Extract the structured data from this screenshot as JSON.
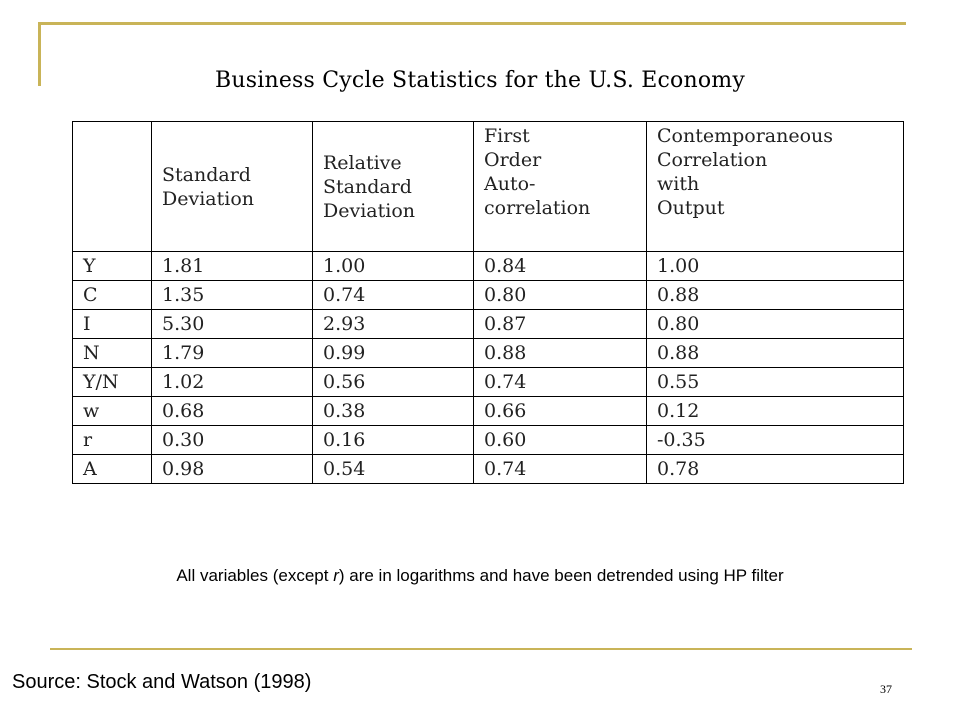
{
  "slide": {
    "title": "Business Cycle Statistics for the U.S. Economy",
    "note_prefix": "All variables (except ",
    "note_var": "r",
    "note_suffix": ") are in logarithms and have been detrended using HP filter",
    "source": "Source: Stock and Watson (1998)",
    "page_number": "37",
    "accent_color": "#c9b458"
  },
  "table": {
    "headers": [
      {
        "lines": []
      },
      {
        "lines": [
          "Standard",
          "Deviation"
        ]
      },
      {
        "lines": [
          "Relative",
          "Standard",
          "Deviation"
        ]
      },
      {
        "lines": [
          "First",
          "Order",
          "Auto-",
          "correlation"
        ]
      },
      {
        "lines": [
          "Contemporaneous",
          "Correlation",
          "with",
          "Output"
        ]
      }
    ],
    "rows": [
      [
        "Y",
        "1.81",
        "1.00",
        "0.84",
        "1.00"
      ],
      [
        "C",
        "1.35",
        "0.74",
        "0.80",
        "0.88"
      ],
      [
        "I",
        "5.30",
        "2.93",
        "0.87",
        "0.80"
      ],
      [
        "N",
        "1.79",
        "0.99",
        "0.88",
        "0.88"
      ],
      [
        "Y/N",
        "1.02",
        "0.56",
        "0.74",
        "0.55"
      ],
      [
        "w",
        "0.68",
        "0.38",
        "0.66",
        "0.12"
      ],
      [
        "r",
        "0.30",
        "0.16",
        "0.60",
        "-0.35"
      ],
      [
        "A",
        "0.98",
        "0.54",
        "0.74",
        "0.78"
      ]
    ]
  }
}
